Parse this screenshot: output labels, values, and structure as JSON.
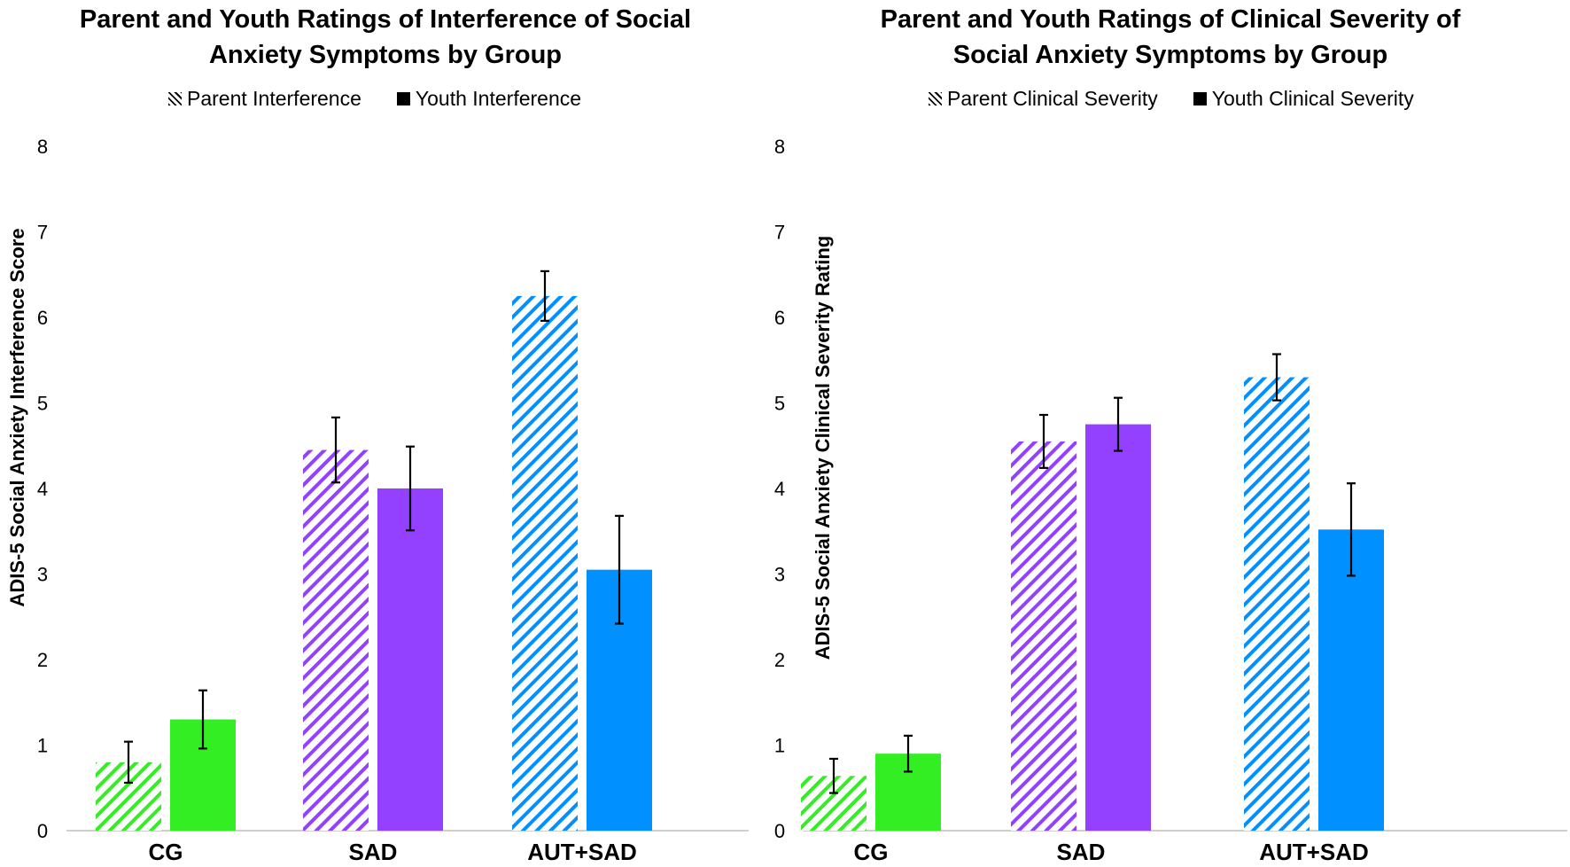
{
  "chart_data": [
    {
      "type": "bar",
      "title_lines": [
        "Parent and Youth Ratings of Interference of Social",
        "Anxiety Symptoms by Group"
      ],
      "ylabel": "ADIS-5 Social Anxiety Interference Score",
      "xlabel": "",
      "ylim": [
        0,
        8
      ],
      "yticks": [
        0,
        1,
        2,
        3,
        4,
        5,
        6,
        7,
        8
      ],
      "categories": [
        "CG",
        "SAD",
        "AUT+SAD"
      ],
      "legend_position": "top",
      "series": [
        {
          "name": "Parent Interference",
          "pattern": "hatched",
          "values": [
            0.8,
            4.45,
            6.25
          ],
          "errors": [
            0.24,
            0.38,
            0.29
          ]
        },
        {
          "name": "Youth Interference",
          "pattern": "solid",
          "values": [
            1.3,
            4.0,
            3.05
          ],
          "errors": [
            0.34,
            0.49,
            0.63
          ]
        }
      ],
      "group_colors": [
        "#33ee22",
        "#9440ff",
        "#0090ff"
      ]
    },
    {
      "type": "bar",
      "title_lines": [
        "Parent and Youth Ratings of Clinical Severity of",
        "Social Anxiety Symptoms by Group"
      ],
      "ylabel": "ADIS-5 Social Anxiety Clinical Severity Rating",
      "xlabel": "",
      "ylim": [
        0,
        8
      ],
      "yticks": [
        0,
        1,
        2,
        3,
        4,
        5,
        6,
        7,
        8
      ],
      "categories": [
        "CG",
        "SAD",
        "AUT+SAD"
      ],
      "legend_position": "top",
      "series": [
        {
          "name": "Parent Clinical Severity",
          "pattern": "hatched",
          "values": [
            0.64,
            4.55,
            5.3
          ],
          "errors": [
            0.2,
            0.31,
            0.27
          ]
        },
        {
          "name": "Youth Clinical Severity",
          "pattern": "solid",
          "values": [
            0.9,
            4.75,
            3.52
          ],
          "errors": [
            0.21,
            0.31,
            0.54
          ]
        }
      ],
      "group_colors": [
        "#33ee22",
        "#9440ff",
        "#0090ff"
      ]
    }
  ]
}
